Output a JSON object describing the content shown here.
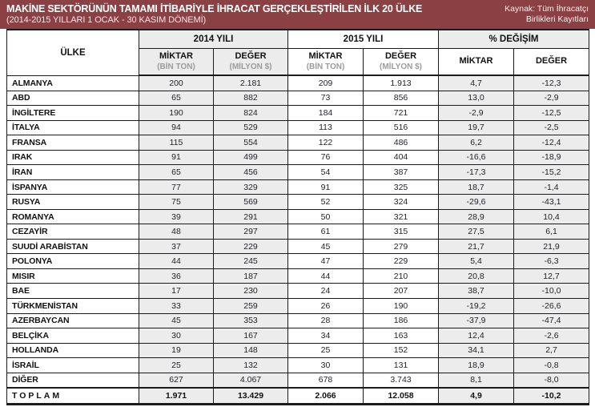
{
  "header": {
    "title": "MAKİNE SEKTÖRÜNÜN TAMAMI İTİBARİYLE İHRACAT GERÇEKLEŞTİRİLEN İLK 20 ÜLKE",
    "subtitle": "(2014-2015 YILLARI 1 OCAK - 30 KASIM DÖNEMİ)",
    "source_line1": "Kaynak: Tüm İhracatçı",
    "source_line2": "Birlikleri Kayıtları"
  },
  "colors": {
    "band_maroon": "#8b4043",
    "cell_gray": "#ececec",
    "border_black": "#1b1b1b",
    "unit_gray": "#9b9b9b"
  },
  "table": {
    "country_header": "ÜLKE",
    "groups": [
      {
        "label": "2014 YILI"
      },
      {
        "label": "2015 YILI"
      },
      {
        "label": "% DEĞİŞİM"
      }
    ],
    "subheaders": [
      {
        "main": "MİKTAR",
        "unit": "(BİN TON)"
      },
      {
        "main": "DEĞER",
        "unit": "(MİLYON $)"
      },
      {
        "main": "MİKTAR",
        "unit": "(BİN TON)"
      },
      {
        "main": "DEĞER",
        "unit": "(MİLYON $)"
      },
      {
        "main": "MİKTAR",
        "unit": ""
      },
      {
        "main": "DEĞER",
        "unit": ""
      }
    ]
  },
  "chart_data": {
    "type": "table",
    "title": "MAKİNE SEKTÖRÜNÜN TAMAMI İTİBARİYLE İHRACAT GERÇEKLEŞTİRİLEN İLK 20 ÜLKE (2014-2015 YILLARI 1 OCAK - 30 KASIM DÖNEMİ)",
    "columns": [
      "ÜLKE",
      "2014 YILI MİKTAR (BİN TON)",
      "2014 YILI DEĞER (MİLYON $)",
      "2015 YILI MİKTAR (BİN TON)",
      "2015 YILI DEĞER (MİLYON $)",
      "% DEĞİŞİM MİKTAR",
      "% DEĞİŞİM DEĞER"
    ],
    "rows": [
      [
        "ALMANYA",
        "200",
        "2.181",
        "209",
        "1.913",
        "4,7",
        "-12,3"
      ],
      [
        "ABD",
        "65",
        "882",
        "73",
        "856",
        "13,0",
        "-2,9"
      ],
      [
        "İNGİLTERE",
        "190",
        "824",
        "184",
        "721",
        "-2,9",
        "-12,5"
      ],
      [
        "İTALYA",
        "94",
        "529",
        "113",
        "516",
        "19,7",
        "-2,5"
      ],
      [
        "FRANSA",
        "115",
        "554",
        "122",
        "486",
        "6,2",
        "-12,4"
      ],
      [
        "IRAK",
        "91",
        "499",
        "76",
        "404",
        "-16,6",
        "-18,9"
      ],
      [
        "İRAN",
        "65",
        "456",
        "54",
        "387",
        "-17,3",
        "-15,2"
      ],
      [
        "İSPANYA",
        "77",
        "329",
        "91",
        "325",
        "18,7",
        "-1,4"
      ],
      [
        "RUSYA",
        "75",
        "569",
        "52",
        "324",
        "-29,6",
        "-43,1"
      ],
      [
        "ROMANYA",
        "39",
        "291",
        "50",
        "321",
        "28,9",
        "10,4"
      ],
      [
        "CEZAYİR",
        "48",
        "297",
        "61",
        "315",
        "27,5",
        "6,1"
      ],
      [
        "SUUDİ ARABİSTAN",
        "37",
        "229",
        "45",
        "279",
        "21,7",
        "21,9"
      ],
      [
        "POLONYA",
        "44",
        "245",
        "47",
        "229",
        "5,4",
        "-6,3"
      ],
      [
        "MISIR",
        "36",
        "187",
        "44",
        "210",
        "20,8",
        "12,7"
      ],
      [
        "BAE",
        "17",
        "230",
        "24",
        "207",
        "38,7",
        "-10,0"
      ],
      [
        "TÜRKMENİSTAN",
        "33",
        "259",
        "26",
        "190",
        "-19,2",
        "-26,6"
      ],
      [
        "AZERBAYCAN",
        "45",
        "353",
        "28",
        "186",
        "-37,9",
        "-47,4"
      ],
      [
        "BELÇİKA",
        "30",
        "167",
        "34",
        "163",
        "12,4",
        "-2,6"
      ],
      [
        "HOLLANDA",
        "19",
        "148",
        "25",
        "152",
        "34,1",
        "2,7"
      ],
      [
        "İSRAİL",
        "25",
        "132",
        "30",
        "131",
        "18,9",
        "-0,8"
      ],
      [
        "DİĞER",
        "627",
        "4.067",
        "678",
        "3.743",
        "8,1",
        "-8,0"
      ]
    ],
    "total_row": [
      "TOPLAM",
      "1.971",
      "13.429",
      "2.066",
      "12.058",
      "4,9",
      "-10,2"
    ]
  }
}
